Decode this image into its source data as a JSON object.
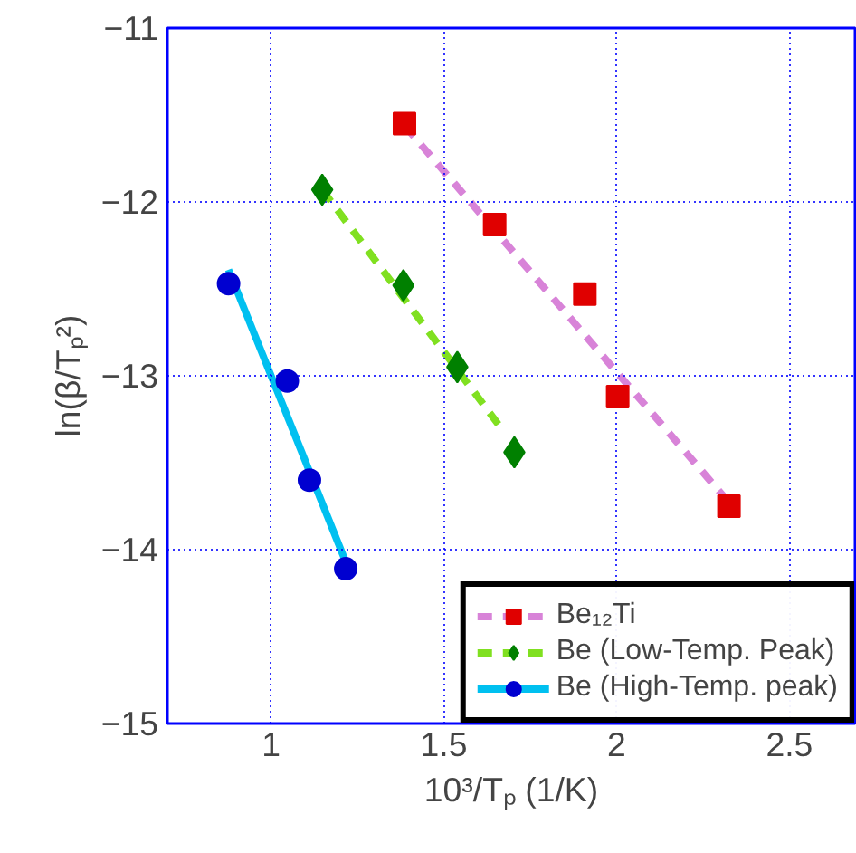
{
  "chart_data": {
    "type": "scatter",
    "xlabel": "10³/Tₚ (1/K)",
    "ylabel": "ln(β/Tₚ²)",
    "xlim": [
      0.7,
      2.69
    ],
    "ylim": [
      -15,
      -11
    ],
    "xticks": [
      1,
      1.5,
      2,
      2.5
    ],
    "yticks": [
      -15,
      -14,
      -13,
      -12,
      -11
    ],
    "grid": true,
    "legend": "bottom right",
    "series": [
      {
        "name": "Be₁₂Ti",
        "marker": "square",
        "color": "#e00000",
        "x": [
          1.386,
          1.647,
          1.908,
          2.003,
          2.325
        ],
        "values": [
          -11.55,
          -12.13,
          -12.53,
          -13.12,
          -13.75
        ]
      },
      {
        "type": "line",
        "line_style": "dashed",
        "marker": "none",
        "color": "#d883d8",
        "x": [
          1.386,
          2.308
        ],
        "values": [
          -11.56,
          -13.69
        ]
      },
      {
        "name": "Be (Low-Temp. Peak)",
        "marker": "diamond",
        "color": "#008000",
        "x": [
          1.148,
          1.383,
          1.539,
          1.704
        ],
        "values": [
          -11.93,
          -12.48,
          -12.95,
          -13.44
        ]
      },
      {
        "type": "line",
        "line_style": "dashed",
        "marker": "none",
        "color": "#80e020",
        "x": [
          1.148,
          1.673
        ],
        "values": [
          -11.93,
          -13.32
        ]
      },
      {
        "name": "Be (High-Temp. peak)",
        "marker": "circle",
        "color": "#0000d0",
        "x": [
          0.877,
          1.047,
          1.111,
          1.216
        ],
        "values": [
          -12.47,
          -13.03,
          -13.6,
          -14.11
        ]
      },
      {
        "type": "line",
        "line_style": "solid",
        "marker": "none",
        "color": "#00c0f0",
        "x": [
          0.877,
          1.216
        ],
        "values": [
          -12.39,
          -14.07
        ]
      }
    ]
  }
}
